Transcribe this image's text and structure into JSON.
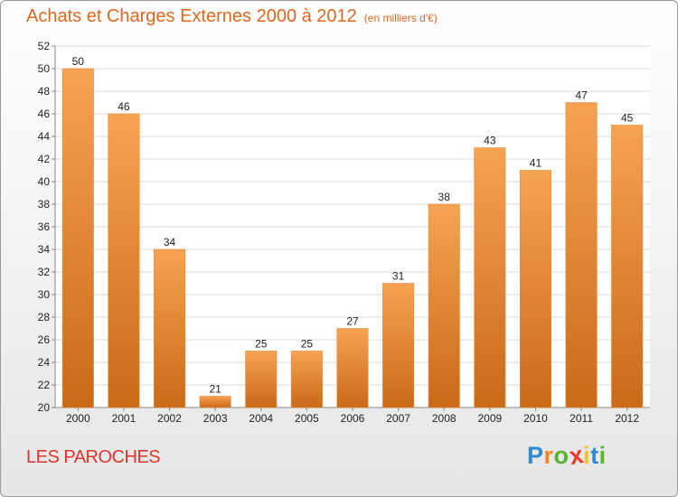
{
  "header": {
    "title": "Achats et Charges Externes 2000 à 2012",
    "subtitle": "(en milliers d'€)"
  },
  "footer": {
    "place": "LES PAROCHES",
    "logo_letters": [
      "P",
      "r",
      "o",
      "x",
      "i",
      "t",
      "i"
    ],
    "logo_colors": [
      "#2e8bd0",
      "#f08a1c",
      "#58b32f",
      "#e8382b",
      "#f4c21b",
      "#2e8bd0",
      "#58b32f"
    ]
  },
  "colors": {
    "bar_light": "#f6a352",
    "bar_dark": "#c96a17",
    "grid": "#d8d8d8",
    "title": "#e0671f"
  },
  "chart_data": {
    "type": "bar",
    "categories": [
      "2000",
      "2001",
      "2002",
      "2003",
      "2004",
      "2005",
      "2006",
      "2007",
      "2008",
      "2009",
      "2010",
      "2011",
      "2012"
    ],
    "values": [
      50,
      46,
      34,
      21,
      25,
      25,
      27,
      31,
      38,
      43,
      41,
      47,
      45
    ],
    "ylim": [
      20,
      52
    ],
    "yticks": [
      20,
      22,
      24,
      26,
      28,
      30,
      32,
      34,
      36,
      38,
      40,
      42,
      44,
      46,
      48,
      50,
      52
    ],
    "grid": true,
    "legend": "none"
  }
}
